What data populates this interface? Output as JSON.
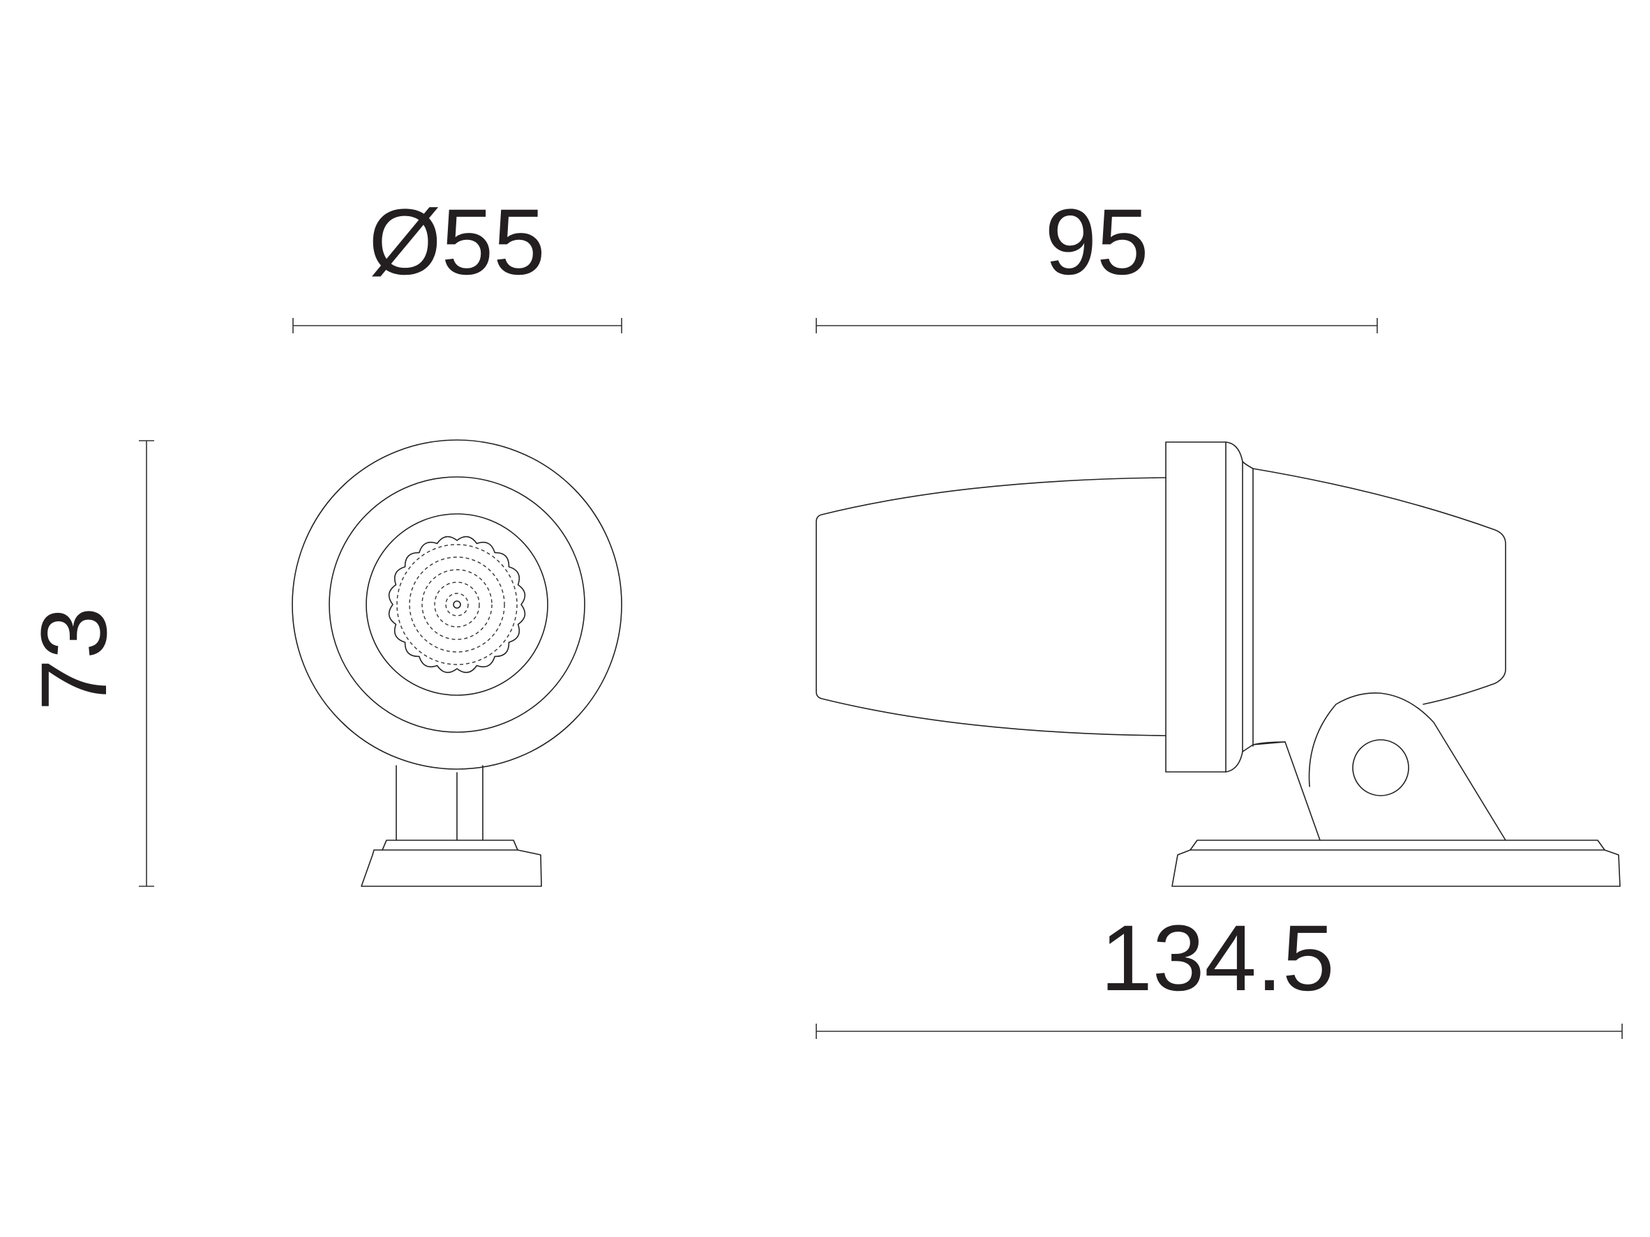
{
  "dimensions": {
    "diameter": "Ø55",
    "depth": "95",
    "height": "73",
    "length": "134.5"
  }
}
